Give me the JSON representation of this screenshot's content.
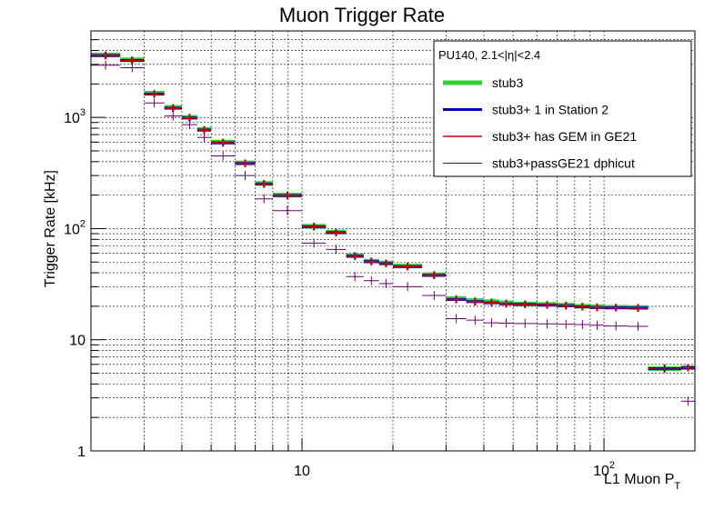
{
  "chart_data": {
    "type": "step",
    "title": "Muon Trigger Rate",
    "xlabel_main": "L1 Muon P",
    "xlabel_sub": "T",
    "ylabel": "Trigger Rate [kHz]",
    "x_scale": "log",
    "y_scale": "log",
    "xlim": [
      2,
      200
    ],
    "ylim": [
      1,
      6000
    ],
    "grid": true,
    "x_ticks": [
      {
        "value": 10,
        "label": "10"
      },
      {
        "value": 100,
        "label": "10",
        "sup": "2"
      }
    ],
    "y_ticks": [
      {
        "value": 1,
        "label": "1"
      },
      {
        "value": 10,
        "label": "10"
      },
      {
        "value": 100,
        "label": "10",
        "sup": "2"
      },
      {
        "value": 1000,
        "label": "10",
        "sup": "3"
      }
    ],
    "legend": {
      "placement": "top-right",
      "header": "PU140, 2.1<|η|<2.4"
    },
    "bins": [
      [
        2,
        2.5
      ],
      [
        2.5,
        3
      ],
      [
        3,
        3.5
      ],
      [
        3.5,
        4
      ],
      [
        4,
        4.5
      ],
      [
        4.5,
        5
      ],
      [
        5,
        6
      ],
      [
        6,
        7
      ],
      [
        7,
        8
      ],
      [
        8,
        10
      ],
      [
        10,
        12
      ],
      [
        12,
        14
      ],
      [
        14,
        16
      ],
      [
        16,
        18
      ],
      [
        18,
        20
      ],
      [
        20,
        25
      ],
      [
        25,
        30
      ],
      [
        30,
        35
      ],
      [
        35,
        40
      ],
      [
        40,
        45
      ],
      [
        45,
        50
      ],
      [
        50,
        60
      ],
      [
        60,
        70
      ],
      [
        70,
        80
      ],
      [
        80,
        90
      ],
      [
        90,
        100
      ],
      [
        100,
        120
      ],
      [
        120,
        140
      ],
      [
        140,
        180
      ],
      [
        180,
        200
      ]
    ],
    "series": [
      {
        "name": "stub3",
        "color": "#33cc33",
        "values": [
          3650,
          3300,
          1650,
          1230,
          1000,
          780,
          600,
          390,
          255,
          200,
          105,
          93,
          57,
          51,
          49,
          46,
          38.5,
          23.5,
          22.5,
          22,
          21.5,
          21,
          20.8,
          20.5,
          20,
          19.8,
          19.6,
          19.5,
          5.5,
          5.6
        ]
      },
      {
        "name": "stub3+ 1 in Station 2",
        "color": "#0000bb",
        "values": [
          3600,
          3250,
          1620,
          1210,
          990,
          770,
          590,
          385,
          252,
          198,
          104,
          92,
          56.5,
          50.5,
          48.5,
          45.5,
          38,
          23,
          22,
          21.5,
          21,
          20.8,
          20.5,
          20.2,
          19.8,
          19.5,
          19.4,
          19.3,
          5.5,
          5.6
        ]
      },
      {
        "name": "stub3+ has GEM in GE21",
        "color": "#cc0000",
        "values": [
          3600,
          3250,
          1620,
          1210,
          990,
          770,
          590,
          385,
          252,
          198,
          104,
          92,
          56.5,
          50.5,
          48.5,
          45.5,
          38,
          23,
          22,
          21.5,
          21,
          20.8,
          20.5,
          20.2,
          19.8,
          19.5,
          19.4,
          19.3,
          5.5,
          5.6
        ]
      },
      {
        "name": "stub3+passGE21 dphicut",
        "color": "#660066",
        "values": [
          2950,
          2800,
          1350,
          1030,
          860,
          660,
          450,
          300,
          185,
          145,
          74,
          65,
          37,
          34,
          32,
          30,
          25,
          15.5,
          15,
          14.2,
          14.1,
          14,
          13.9,
          13.8,
          13.7,
          13.5,
          13.3,
          13.2,
          5.5,
          2.8
        ]
      }
    ]
  }
}
